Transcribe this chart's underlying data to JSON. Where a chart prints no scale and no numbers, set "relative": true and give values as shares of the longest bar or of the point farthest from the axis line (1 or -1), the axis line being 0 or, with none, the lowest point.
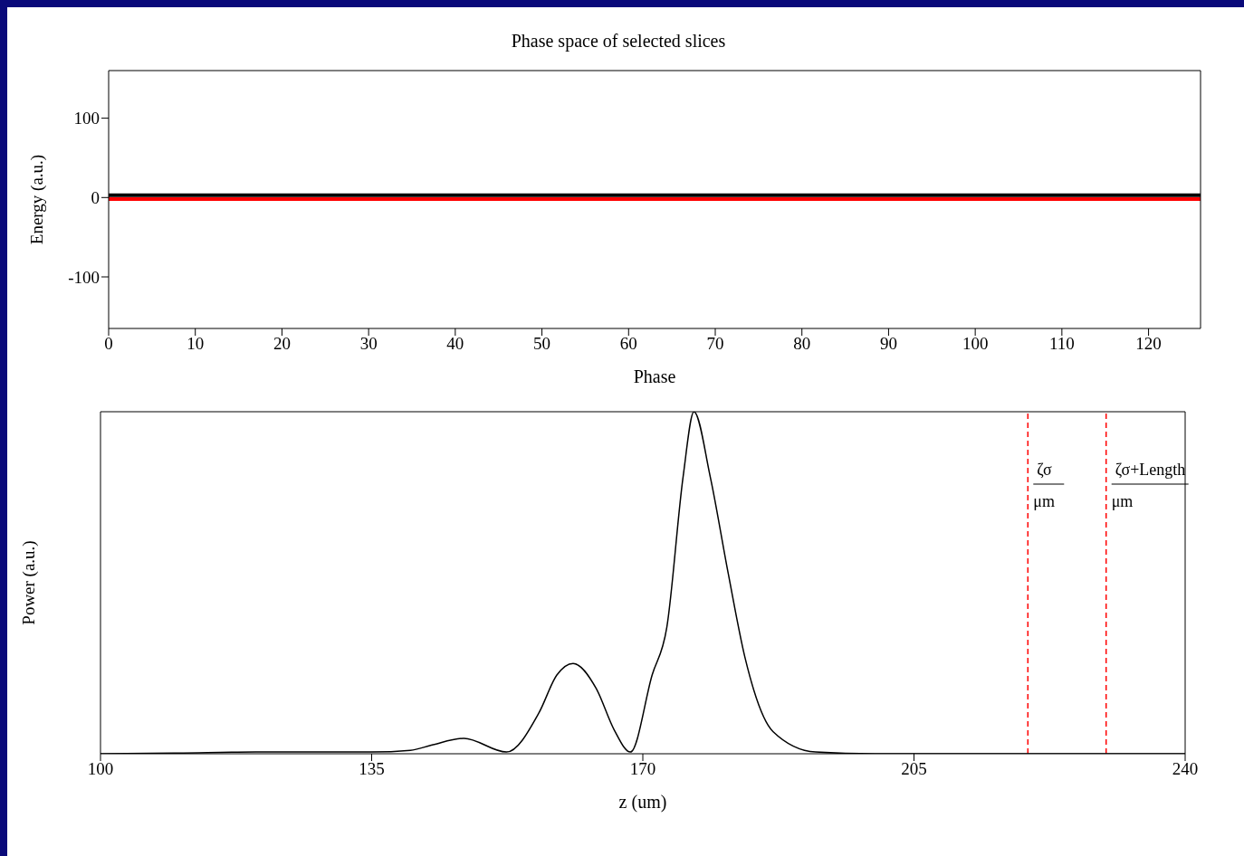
{
  "chart_data": [
    {
      "type": "line",
      "title": "Phase space of selected slices",
      "xlabel": "Phase",
      "ylabel": "Energy (a.u.)",
      "xlim": [
        0,
        126
      ],
      "xticks": [
        0,
        10,
        20,
        30,
        40,
        50,
        60,
        70,
        80,
        90,
        100,
        110,
        120
      ],
      "ylim": [
        -165,
        160
      ],
      "yticks": [
        -100,
        0,
        100
      ],
      "grid": false,
      "legend": false,
      "marker": "none",
      "line_style": "solid",
      "series": [
        {
          "color": "#000000",
          "x": [
            0,
            126
          ],
          "values": [
            3,
            3
          ]
        },
        {
          "color": "#ff0000",
          "x": [
            0,
            126
          ],
          "values": [
            -2,
            -2
          ]
        }
      ]
    },
    {
      "type": "line",
      "xlabel": "z (um)",
      "ylabel": "Power (a.u.)",
      "relative": true,
      "xlim": [
        100,
        240
      ],
      "xticks": [
        100,
        135,
        170,
        205,
        240
      ],
      "grid": false,
      "legend": false,
      "marker": "none",
      "line_style": "solid",
      "series": [
        {
          "color": "#000000",
          "x": [
            100,
            110,
            120,
            130,
            135,
            140,
            142.7,
            146.9,
            152.4,
            156.6,
            158.9,
            161.0,
            164.0,
            166.3,
            168.4,
            171.2,
            173.1,
            175.2,
            176.6,
            178.7,
            181.0,
            183.2,
            186.8,
            192.3,
            200,
            210,
            220,
            230,
            240
          ],
          "values": [
            0,
            0.002,
            0.005,
            0.005,
            0.005,
            0.01,
            0.025,
            0.045,
            0.005,
            0.12,
            0.23,
            0.264,
            0.19,
            0.07,
            0.005,
            0.23,
            0.37,
            0.81,
            1,
            0.81,
            0.53,
            0.28,
            0.065,
            0.005,
            0,
            0,
            0,
            0,
            0
          ]
        }
      ],
      "ref_lines": [
        {
          "axis": "x",
          "value": 219.7,
          "label": "ζσ",
          "color": "#ff0000",
          "line_style": "dashed"
        },
        {
          "axis": "x",
          "value": 229.8,
          "label": "ζσ+Length",
          "color": "#ff0000",
          "line_style": "dashed"
        }
      ],
      "annotations": [
        {
          "text": "μm",
          "x": 219.7,
          "y": 0.74
        },
        {
          "text": "μm",
          "x": 229.8,
          "y": 0.74
        }
      ]
    }
  ]
}
